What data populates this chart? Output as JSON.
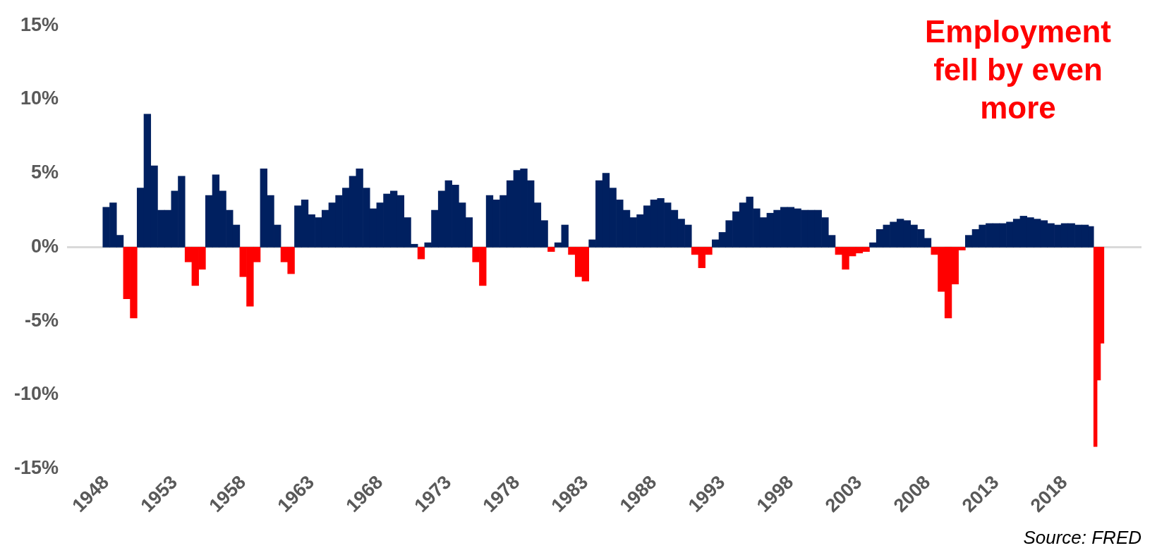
{
  "chart_data": {
    "type": "bar",
    "x": [
      1948,
      1948.5,
      1949,
      1949.5,
      1950,
      1950.5,
      1951,
      1951.5,
      1952,
      1952.5,
      1953,
      1953.5,
      1954,
      1954.5,
      1955,
      1955.5,
      1956,
      1956.5,
      1957,
      1957.5,
      1958,
      1958.5,
      1959,
      1959.5,
      1960,
      1960.5,
      1961,
      1961.5,
      1962,
      1962.5,
      1963,
      1963.5,
      1964,
      1964.5,
      1965,
      1965.5,
      1966,
      1966.5,
      1967,
      1967.5,
      1968,
      1968.5,
      1969,
      1969.5,
      1970,
      1970.5,
      1971,
      1971.5,
      1972,
      1972.5,
      1973,
      1973.5,
      1974,
      1974.5,
      1975,
      1975.5,
      1976,
      1976.5,
      1977,
      1977.5,
      1978,
      1978.5,
      1979,
      1979.5,
      1980,
      1980.5,
      1981,
      1981.5,
      1982,
      1982.5,
      1983,
      1983.5,
      1984,
      1984.5,
      1985,
      1985.5,
      1986,
      1986.5,
      1987,
      1987.5,
      1988,
      1988.5,
      1989,
      1989.5,
      1990,
      1990.5,
      1991,
      1991.5,
      1992,
      1992.5,
      1993,
      1993.5,
      1994,
      1994.5,
      1995,
      1995.5,
      1996,
      1996.5,
      1997,
      1997.5,
      1998,
      1998.5,
      1999,
      1999.5,
      2000,
      2000.5,
      2001,
      2001.5,
      2002,
      2002.5,
      2003,
      2003.5,
      2004,
      2004.5,
      2005,
      2005.5,
      2006,
      2006.5,
      2007,
      2007.5,
      2008,
      2008.5,
      2009,
      2009.5,
      2010,
      2010.5,
      2011,
      2011.5,
      2012,
      2012.5,
      2013,
      2013.5,
      2014,
      2014.5,
      2015,
      2015.5,
      2016,
      2016.5,
      2017,
      2017.5,
      2018,
      2018.5,
      2019,
      2019.5,
      2020,
      2020.25,
      2020.5,
      2020.75
    ],
    "values": [
      2.7,
      3.0,
      0.8,
      -3.5,
      -4.8,
      4.0,
      9.0,
      5.5,
      2.5,
      2.5,
      3.8,
      4.8,
      -1.0,
      -2.6,
      -1.5,
      3.5,
      4.9,
      3.8,
      2.5,
      1.5,
      -2.0,
      -4.0,
      -1.0,
      5.3,
      3.5,
      1.5,
      -1.0,
      -1.8,
      2.8,
      3.2,
      2.2,
      2.0,
      2.5,
      3.0,
      3.5,
      4.0,
      4.8,
      5.3,
      4.0,
      2.6,
      3.0,
      3.6,
      3.8,
      3.5,
      2.0,
      0.2,
      -0.8,
      0.3,
      2.5,
      3.8,
      4.5,
      4.2,
      3.0,
      2.0,
      -1.0,
      -2.6,
      3.5,
      3.2,
      3.5,
      4.5,
      5.2,
      5.3,
      4.5,
      3.0,
      1.8,
      -0.3,
      0.3,
      1.5,
      -0.5,
      -2.0,
      -2.3,
      0.5,
      4.5,
      5.0,
      4.0,
      3.2,
      2.5,
      2.0,
      2.2,
      2.8,
      3.2,
      3.3,
      3.0,
      2.5,
      1.9,
      1.5,
      -0.5,
      -1.4,
      -0.5,
      0.5,
      1.0,
      1.8,
      2.4,
      3.0,
      3.4,
      2.6,
      2.0,
      2.3,
      2.5,
      2.7,
      2.7,
      2.6,
      2.5,
      2.5,
      2.5,
      2.0,
      0.8,
      -0.5,
      -1.5,
      -0.6,
      -0.4,
      -0.3,
      0.3,
      1.2,
      1.5,
      1.7,
      1.9,
      1.8,
      1.5,
      1.2,
      0.6,
      -0.5,
      -3.0,
      -4.8,
      -2.5,
      -0.2,
      0.8,
      1.2,
      1.5,
      1.6,
      1.6,
      1.6,
      1.7,
      1.9,
      2.1,
      2.0,
      1.9,
      1.8,
      1.6,
      1.5,
      1.6,
      1.6,
      1.5,
      1.5,
      1.4,
      -13.5,
      -9.0,
      -6.5
    ],
    "colors": [
      "#002060",
      "#002060",
      "#002060",
      "#ff0000",
      "#ff0000",
      "#002060",
      "#002060",
      "#002060",
      "#002060",
      "#002060",
      "#002060",
      "#002060",
      "#ff0000",
      "#ff0000",
      "#ff0000",
      "#002060",
      "#002060",
      "#002060",
      "#002060",
      "#002060",
      "#ff0000",
      "#ff0000",
      "#ff0000",
      "#002060",
      "#002060",
      "#002060",
      "#ff0000",
      "#ff0000",
      "#002060",
      "#002060",
      "#002060",
      "#002060",
      "#002060",
      "#002060",
      "#002060",
      "#002060",
      "#002060",
      "#002060",
      "#002060",
      "#002060",
      "#002060",
      "#002060",
      "#002060",
      "#002060",
      "#002060",
      "#002060",
      "#ff0000",
      "#002060",
      "#002060",
      "#002060",
      "#002060",
      "#002060",
      "#002060",
      "#002060",
      "#ff0000",
      "#ff0000",
      "#002060",
      "#002060",
      "#002060",
      "#002060",
      "#002060",
      "#002060",
      "#002060",
      "#002060",
      "#002060",
      "#ff0000",
      "#002060",
      "#002060",
      "#ff0000",
      "#ff0000",
      "#ff0000",
      "#002060",
      "#002060",
      "#002060",
      "#002060",
      "#002060",
      "#002060",
      "#002060",
      "#002060",
      "#002060",
      "#002060",
      "#002060",
      "#002060",
      "#002060",
      "#002060",
      "#002060",
      "#ff0000",
      "#ff0000",
      "#ff0000",
      "#002060",
      "#002060",
      "#002060",
      "#002060",
      "#002060",
      "#002060",
      "#002060",
      "#002060",
      "#002060",
      "#002060",
      "#002060",
      "#002060",
      "#002060",
      "#002060",
      "#002060",
      "#002060",
      "#002060",
      "#002060",
      "#ff0000",
      "#ff0000",
      "#ff0000",
      "#ff0000",
      "#ff0000",
      "#002060",
      "#002060",
      "#002060",
      "#002060",
      "#002060",
      "#002060",
      "#002060",
      "#002060",
      "#002060",
      "#ff0000",
      "#ff0000",
      "#ff0000",
      "#ff0000",
      "#ff0000",
      "#002060",
      "#002060",
      "#002060",
      "#002060",
      "#002060",
      "#002060",
      "#002060",
      "#002060",
      "#002060",
      "#002060",
      "#002060",
      "#002060",
      "#002060",
      "#002060",
      "#002060",
      "#002060",
      "#002060",
      "#002060",
      "#002060",
      "#ff0000",
      "#ff0000",
      "#ff0000"
    ],
    "xlim": [
      1947.75,
      2021
    ],
    "xticks": [
      1948,
      1953,
      1958,
      1963,
      1968,
      1973,
      1978,
      1983,
      1988,
      1993,
      1998,
      2003,
      2008,
      2013,
      2018
    ],
    "ylim": [
      -15,
      15
    ],
    "yticks": [
      {
        "value": -15,
        "label": "-15%"
      },
      {
        "value": -10,
        "label": "-10%"
      },
      {
        "value": -5,
        "label": "-5%"
      },
      {
        "value": 0,
        "label": "0%"
      },
      {
        "value": 5,
        "label": "5%"
      },
      {
        "value": 10,
        "label": "10%"
      },
      {
        "value": 15,
        "label": "15%"
      }
    ],
    "grid": false,
    "ref_lines": [
      {
        "axis": "y",
        "value": 0,
        "color": "#d9d9d9"
      }
    ],
    "legend": false,
    "annotations": [
      "Employment fell by even more",
      "Source: FRED"
    ]
  }
}
